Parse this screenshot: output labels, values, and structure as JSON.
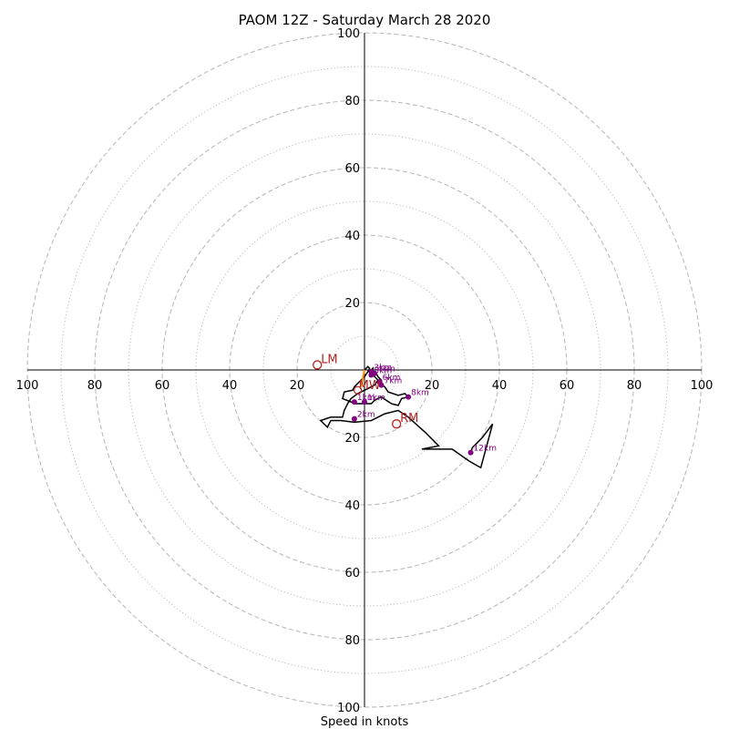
{
  "chart_data": {
    "type": "hodograph",
    "title": "PAOM 12Z - Saturday March 28 2020",
    "xlabel": "Speed in knots",
    "max_speed": 100,
    "ring_solid_dashed": [
      20,
      40,
      60,
      80,
      100
    ],
    "ring_dotted": [
      10,
      30,
      50,
      70,
      90
    ],
    "tick_labels": {
      "top": [
        "20",
        "40",
        "60",
        "80",
        "100"
      ],
      "bottom": [
        "20",
        "40",
        "60",
        "80",
        "100"
      ],
      "left": [
        "20",
        "40",
        "60",
        "80",
        "100"
      ],
      "right": [
        "20",
        "40",
        "60",
        "80",
        "100"
      ]
    },
    "colors": {
      "trace": "#000000",
      "markers": "#800080",
      "storm_motion": "#b22222",
      "rings": "#bbbbbb",
      "shear_vector": "#ff8c00"
    },
    "trace": [
      [
        0,
        0
      ],
      [
        0.5,
        0.5
      ],
      [
        1,
        1
      ],
      [
        1.5,
        0.5
      ],
      [
        1,
        -0.5
      ],
      [
        0,
        -2
      ],
      [
        -1.5,
        -3.5
      ],
      [
        -3,
        -5
      ],
      [
        -3.5,
        -6
      ],
      [
        -6,
        -6.5
      ],
      [
        -6.5,
        -8.5
      ],
      [
        -4,
        -9.5
      ],
      [
        -3,
        -10
      ],
      [
        0,
        -10
      ],
      [
        2,
        -10
      ],
      [
        3,
        -9
      ],
      [
        5,
        -8
      ],
      [
        8,
        -10
      ],
      [
        10,
        -10.5
      ],
      [
        11,
        -8.5
      ],
      [
        13,
        -8
      ],
      [
        12,
        -7
      ],
      [
        10,
        -7.5
      ],
      [
        7,
        -6.5
      ],
      [
        6,
        -5
      ],
      [
        4,
        -4
      ],
      [
        4.5,
        -3
      ],
      [
        5,
        -4.5
      ],
      [
        4.5,
        -3.5
      ],
      [
        5,
        -3
      ],
      [
        4,
        -2
      ],
      [
        3.5,
        -1
      ],
      [
        2.5,
        -0.5
      ],
      [
        2.5,
        0.5
      ],
      [
        2,
        0
      ],
      [
        2,
        -1
      ],
      [
        3,
        -2
      ],
      [
        4,
        -3
      ],
      [
        3,
        -4.5
      ],
      [
        1,
        -5.5
      ],
      [
        -2,
        -7
      ],
      [
        -4,
        -8.5
      ],
      [
        -5,
        -10
      ],
      [
        -6,
        -12
      ],
      [
        -6.5,
        -14
      ],
      [
        -10,
        -14
      ],
      [
        -13,
        -15
      ],
      [
        -11,
        -17
      ],
      [
        -10,
        -15
      ],
      [
        -7,
        -15
      ],
      [
        -3,
        -15.5
      ],
      [
        2,
        -15
      ],
      [
        4,
        -14
      ],
      [
        6,
        -13
      ],
      [
        10,
        -12
      ],
      [
        13,
        -14
      ],
      [
        18,
        -18.5
      ],
      [
        22,
        -22.5
      ],
      [
        17,
        -23.5
      ],
      [
        26,
        -23.5
      ],
      [
        31,
        -27
      ],
      [
        34.5,
        -29
      ],
      [
        38,
        -16
      ],
      [
        35,
        -20
      ],
      [
        32,
        -23
      ],
      [
        31.5,
        -24.5
      ]
    ],
    "points": [
      {
        "label": "3km",
        "u": 2,
        "v": -0.5
      },
      {
        "label": "4km",
        "u": 3,
        "v": -1
      },
      {
        "label": "5km",
        "u": 2,
        "v": -1.5
      },
      {
        "label": "6km",
        "u": 4.5,
        "v": -3.5
      },
      {
        "label": "7km",
        "u": 5,
        "v": -4.5
      },
      {
        "label": "8km",
        "u": 13,
        "v": -8
      },
      {
        "label": "1km",
        "u": -3,
        "v": -9.5
      },
      {
        "label": "2km",
        "u": -3,
        "v": -14.5
      },
      {
        "label": "12km",
        "u": 31.5,
        "v": -24.5
      },
      {
        "label": "1km",
        "u": 0,
        "v": -9.5
      }
    ],
    "storm_motion": [
      {
        "label": "LM",
        "u": -14,
        "v": 1.5
      },
      {
        "label": "RM",
        "u": 9.5,
        "v": -16
      }
    ],
    "mean_wind": {
      "label": "MW",
      "u": -2,
      "v": -6
    },
    "shear_vector": [
      [
        0,
        0
      ],
      [
        -1,
        -5
      ]
    ]
  }
}
